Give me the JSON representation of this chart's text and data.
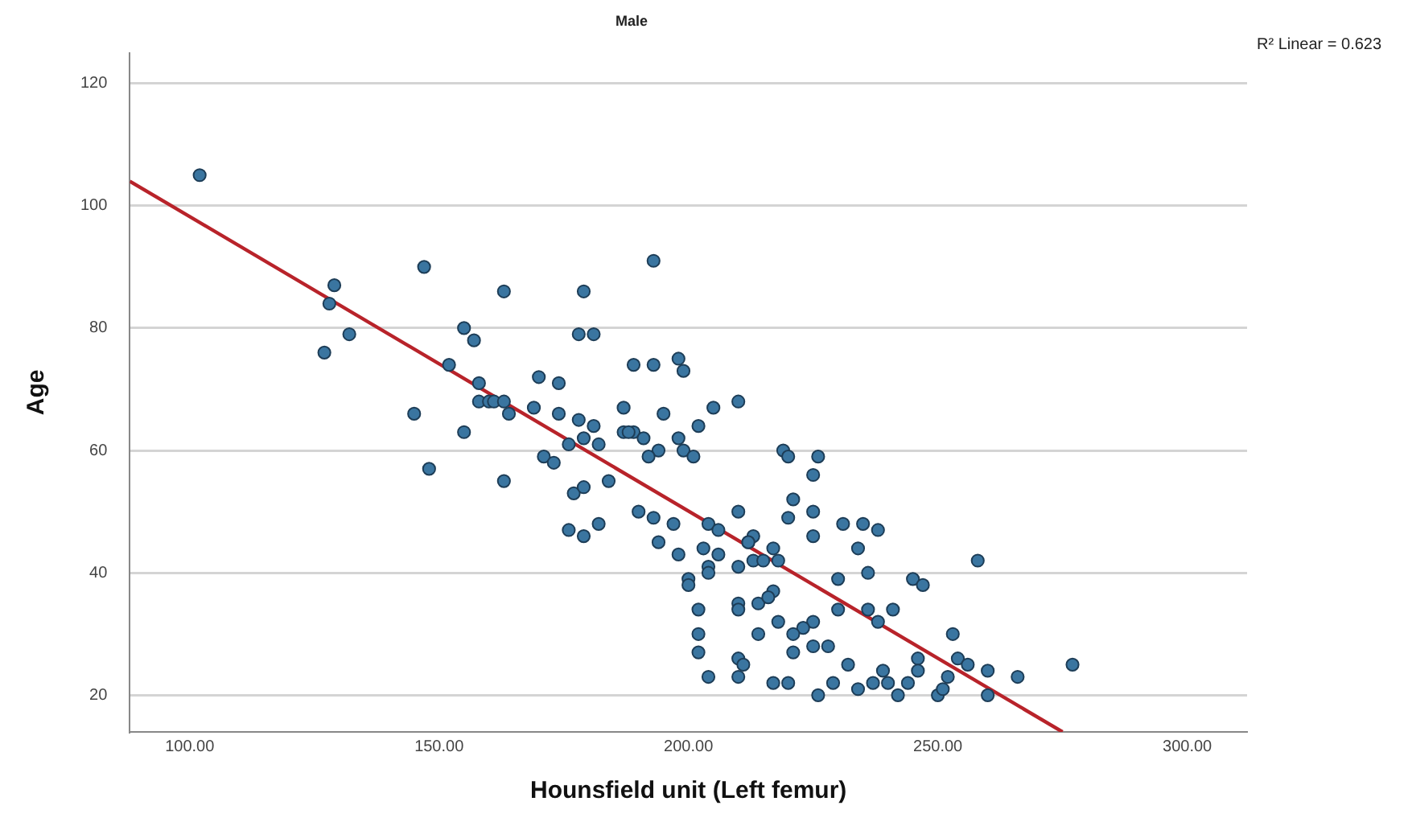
{
  "chart_data": {
    "type": "scatter",
    "title": "Male",
    "xlabel": "Hounsfield unit (Left femur)",
    "ylabel": "Age",
    "xlim": [
      88,
      312
    ],
    "ylim": [
      14,
      125
    ],
    "xticks": [
      {
        "value": 100,
        "label": "100.00"
      },
      {
        "value": 150,
        "label": "150.00"
      },
      {
        "value": 200,
        "label": "200.00"
      },
      {
        "value": 250,
        "label": "250.00"
      },
      {
        "value": 300,
        "label": "300.00"
      }
    ],
    "yticks": [
      20,
      40,
      60,
      80,
      100,
      120
    ],
    "grid": "y",
    "legend": false,
    "annotations": [
      "R² Linear = 0.623"
    ],
    "series": [
      {
        "marker": "circle",
        "color": "#3a75a0",
        "x": [
          102,
          147,
          129,
          163,
          179,
          193,
          128,
          132,
          127,
          155,
          157,
          178,
          181,
          152,
          170,
          174,
          189,
          193,
          198,
          199,
          158,
          158,
          160,
          161,
          163,
          164,
          169,
          174,
          178,
          187,
          195,
          205,
          210,
          145,
          155,
          148,
          163,
          181,
          179,
          176,
          182,
          171,
          173,
          177,
          179,
          184,
          176,
          179,
          182,
          190,
          193,
          197,
          194,
          198,
          203,
          206,
          213,
          217,
          204,
          212,
          213,
          218,
          187,
          189,
          191,
          194,
          192,
          188,
          198,
          199,
          202,
          201,
          206,
          210,
          212,
          215,
          210,
          200,
          200,
          204,
          204,
          202,
          202,
          202,
          204,
          210,
          210,
          214,
          217,
          216,
          218,
          214,
          210,
          211,
          210,
          217,
          219,
          220,
          226,
          225,
          221,
          220,
          225,
          225,
          231,
          235,
          238,
          234,
          236,
          230,
          245,
          247,
          258,
          230,
          236,
          241,
          238,
          225,
          223,
          221,
          253,
          225,
          228,
          221,
          232,
          246,
          254,
          256,
          246,
          239,
          252,
          260,
          266,
          277,
          220,
          229,
          234,
          237,
          240,
          244,
          226,
          242,
          250,
          251,
          260
        ],
        "values": [
          105,
          90,
          87,
          86,
          86,
          91,
          84,
          79,
          76,
          80,
          78,
          79,
          79,
          74,
          72,
          71,
          74,
          74,
          75,
          73,
          71,
          68,
          68,
          68,
          68,
          66,
          67,
          66,
          65,
          67,
          66,
          67,
          68,
          66,
          63,
          57,
          55,
          64,
          62,
          61,
          61,
          59,
          58,
          53,
          54,
          55,
          47,
          46,
          48,
          50,
          49,
          48,
          45,
          43,
          44,
          43,
          46,
          44,
          48,
          45,
          42,
          42,
          63,
          63,
          62,
          60,
          59,
          63,
          62,
          60,
          64,
          59,
          47,
          50,
          45,
          42,
          41,
          39,
          38,
          41,
          40,
          34,
          30,
          27,
          23,
          35,
          34,
          35,
          37,
          36,
          32,
          30,
          26,
          25,
          23,
          22,
          60,
          59,
          59,
          56,
          52,
          49,
          50,
          46,
          48,
          48,
          47,
          44,
          40,
          39,
          39,
          38,
          42,
          34,
          34,
          34,
          32,
          32,
          31,
          30,
          30,
          28,
          28,
          27,
          25,
          26,
          26,
          25,
          24,
          24,
          23,
          24,
          23,
          25,
          22,
          22,
          21,
          22,
          22,
          22,
          20,
          20,
          20,
          21,
          20
        ]
      },
      {
        "type": "line",
        "marker": "none",
        "color": "#b8232a",
        "x": [
          88,
          275
        ],
        "values": [
          104,
          14
        ]
      }
    ]
  }
}
